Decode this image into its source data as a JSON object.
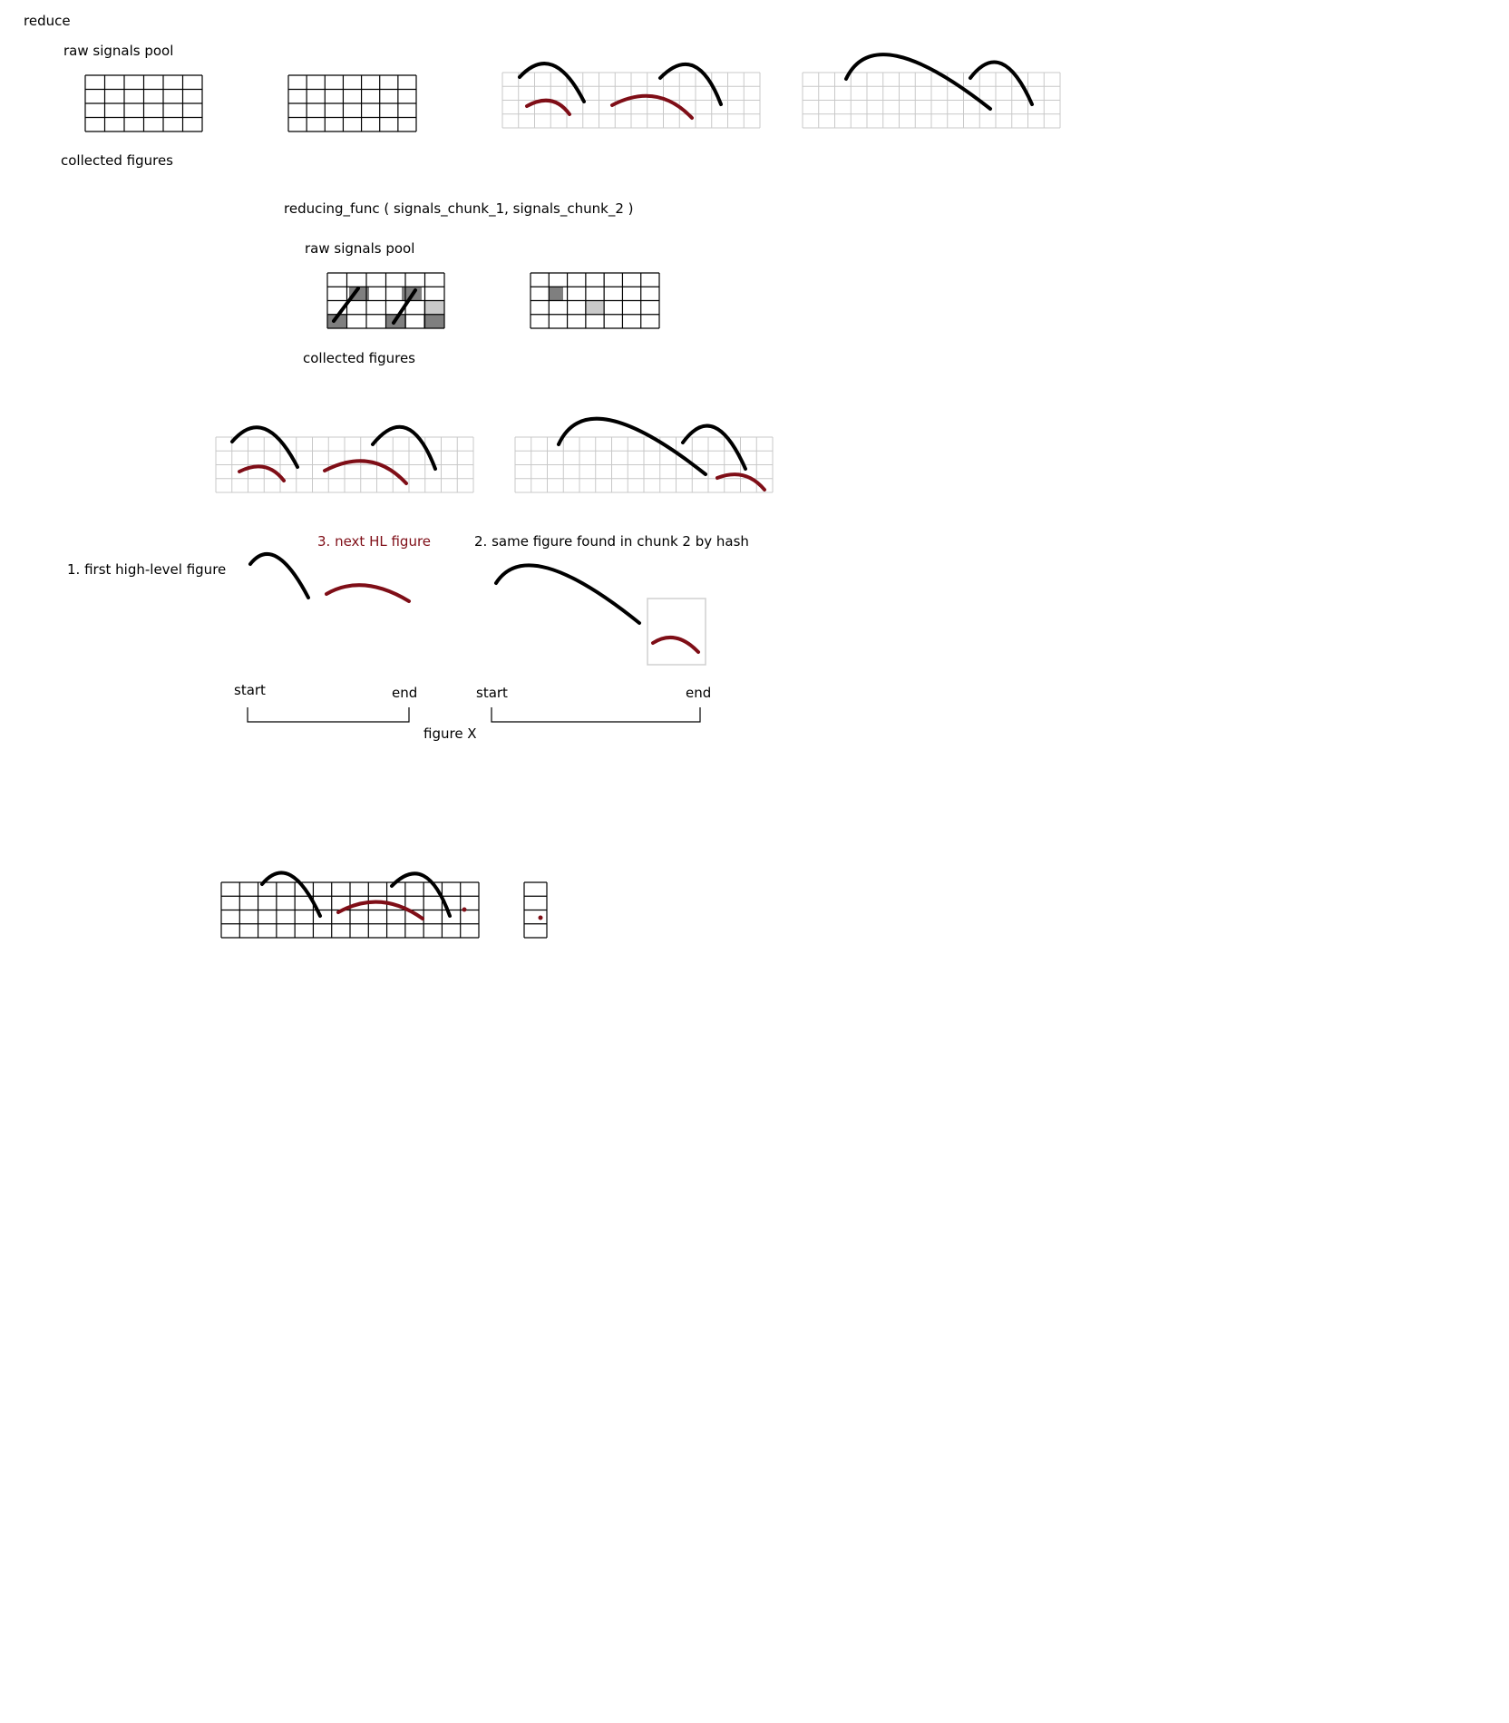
{
  "title": "reduce",
  "section1": {
    "raw_label": "raw signals pool",
    "collected_label": "collected figures"
  },
  "section2": {
    "function_call": "reducing_func ( signals_chunk_1, signals_chunk_2 )",
    "raw_label": "raw signals pool",
    "collected_label": "collected figures"
  },
  "section3": {
    "step1": "1.  first high-level figure",
    "step2": "2. same figure found in chunk 2 by hash",
    "step3": "3. next HL figure",
    "start_1": "start",
    "end_1": "end",
    "start_2": "start",
    "end_2": "end",
    "figure_label": "figure X"
  },
  "colors": {
    "stroke_black": "#000000",
    "stroke_red": "#7f0e17",
    "grid_dark": "#000000",
    "grid_light": "#c8c8c8",
    "cell_dark": "#7f7f7f",
    "cell_light": "#c9c9c9"
  }
}
